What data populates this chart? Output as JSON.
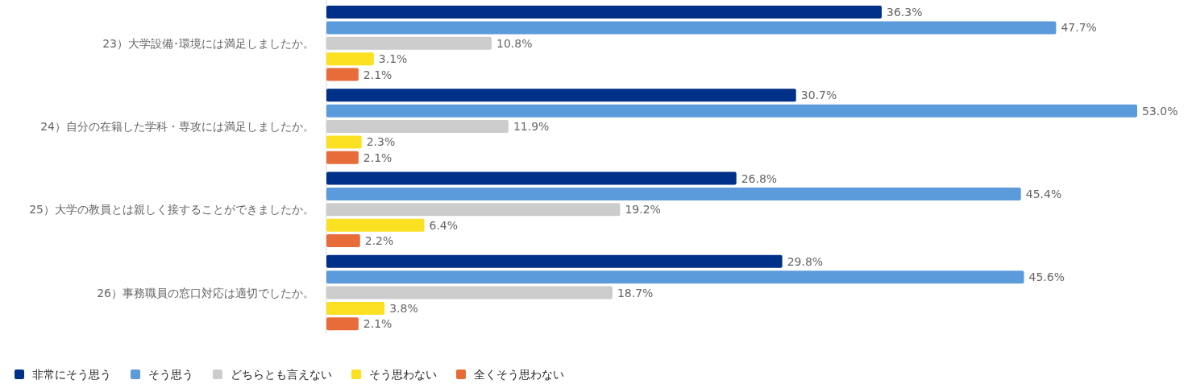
{
  "chart_data": {
    "type": "bar",
    "orientation": "horizontal",
    "legend": "bottom left",
    "categories": [
      "23）大学設備･環境には満足しましたか。",
      "24）自分の在籍した学科・専攻には満足しましたか。",
      "25）大学の教員とは親しく接することができましたか。",
      "26）事務職員の窓口対応は適切でしたか。"
    ],
    "series": [
      {
        "name": "非常にそう思う",
        "color": "#003087",
        "values": [
          36.3,
          30.7,
          26.8,
          29.8
        ],
        "value_labels": [
          "36.3%",
          "30.7%",
          "26.8%",
          "29.8%"
        ]
      },
      {
        "name": "そう思う",
        "color": "#5b9bdb",
        "values": [
          47.7,
          53.0,
          45.4,
          45.6
        ],
        "value_labels": [
          "47.7%",
          "53.0%",
          "45.4%",
          "45.6%"
        ]
      },
      {
        "name": "どちらとも言えない",
        "color": "#cccccc",
        "values": [
          10.8,
          11.9,
          19.2,
          18.7
        ],
        "value_labels": [
          "10.8%",
          "11.9%",
          "19.2%",
          "18.7%"
        ]
      },
      {
        "name": "そう思わない",
        "color": "#fbe122",
        "values": [
          3.1,
          2.3,
          6.4,
          3.8
        ],
        "value_labels": [
          "3.1%",
          "2.3%",
          "6.4%",
          "3.8%"
        ]
      },
      {
        "name": "全くそう思わない",
        "color": "#e86c3a",
        "values": [
          2.1,
          2.1,
          2.2,
          2.1
        ],
        "value_labels": [
          "2.1%",
          "2.1%",
          "2.2%",
          "2.1%"
        ]
      }
    ]
  }
}
